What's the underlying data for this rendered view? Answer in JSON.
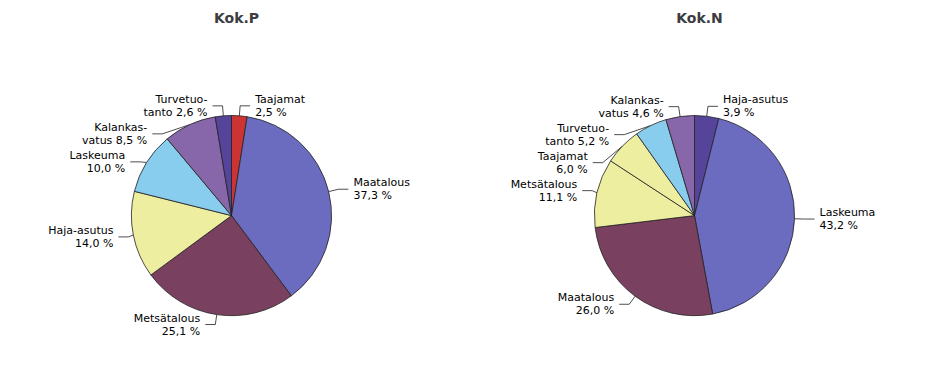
{
  "chart_data": [
    {
      "type": "pie",
      "title": "Kok.P",
      "values": [
        2.5,
        37.3,
        25.1,
        14.0,
        10.0,
        8.5,
        2.6
      ],
      "value_labels": [
        "Taajamat\n2,5 %",
        "Maatalous\n37,3 %",
        "Metsätalous\n25,1 %",
        "Haja-asutus\n14,0 %",
        "Laskeuma\n10,0 %",
        "Kalankas-\nvatus 8,5 %",
        "Turvetuo-\ntanto 2,6 %"
      ],
      "colors": [
        "#cc3333",
        "#6b6bbf",
        "#7a4060",
        "#eeeea0",
        "#88ccee",
        "#8866aa",
        "#554499"
      ],
      "data_labels": true
    },
    {
      "type": "pie",
      "title": "Kok.N",
      "values": [
        3.9,
        43.2,
        26.0,
        11.1,
        6.0,
        5.2,
        4.6
      ],
      "value_labels": [
        "Haja-asutus\n3,9 %",
        "Laskeuma\n43,2 %",
        "Maatalous\n26,0 %",
        "Metsätalous\n11,1 %",
        "Taajamat\n6,0 %",
        "Turvetuo-\ntanto 5,2 %",
        "Kalankas-\nvatus 4,6 %"
      ],
      "colors": [
        "#554499",
        "#6b6bbf",
        "#7a4060",
        "#eeeea0",
        "#eeeea0",
        "#88ccee",
        "#8866aa"
      ],
      "data_labels": true
    }
  ]
}
